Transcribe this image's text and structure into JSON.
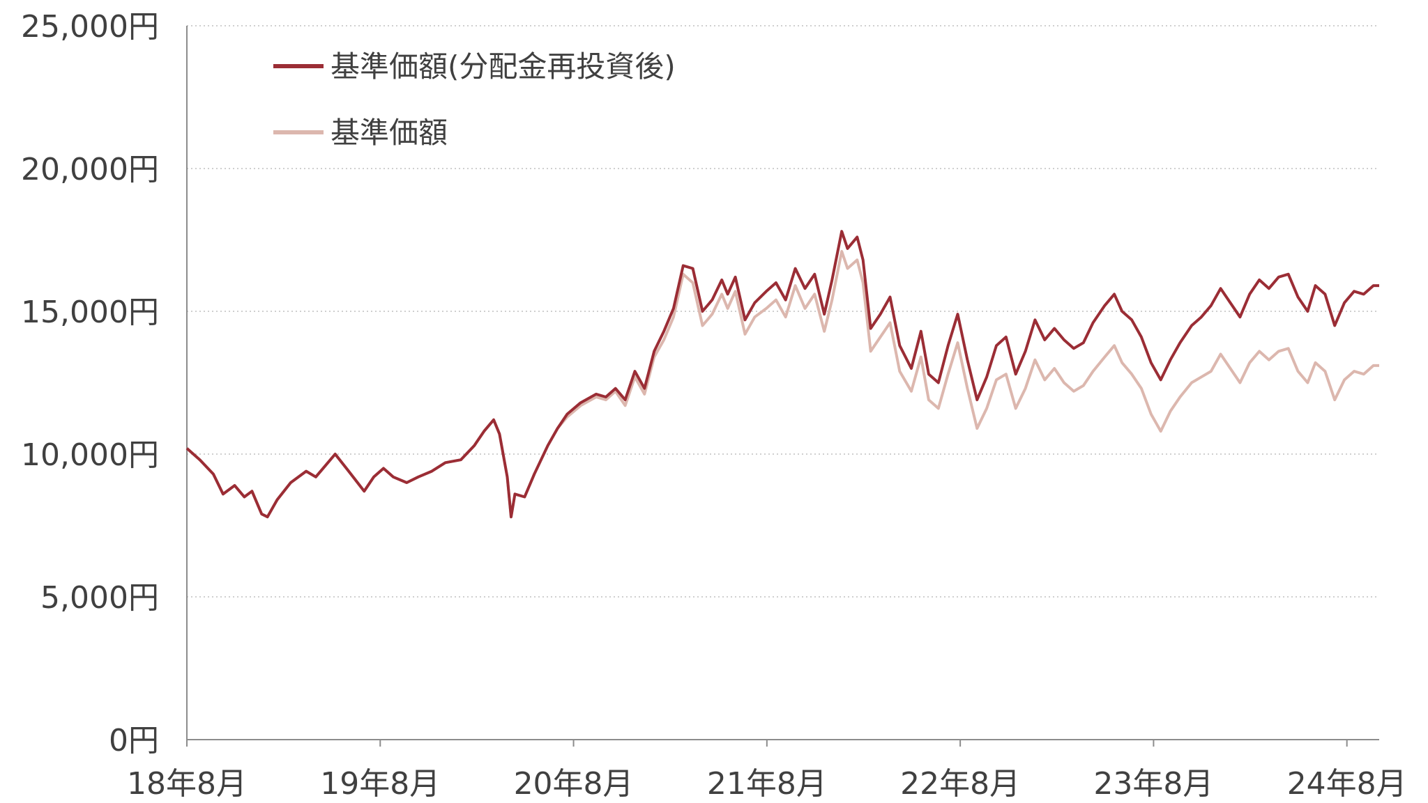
{
  "chart_data": {
    "type": "line",
    "title": "",
    "xlabel": "",
    "ylabel": "",
    "ylim": [
      0,
      25000
    ],
    "y_ticks": [
      0,
      5000,
      10000,
      15000,
      20000,
      25000
    ],
    "y_tick_labels": [
      "0円",
      "5,000円",
      "10,000円",
      "15,000円",
      "20,000円",
      "25,000円"
    ],
    "x_range": [
      2018.583,
      2024.75
    ],
    "x_ticks": [
      2018.583,
      2019.583,
      2020.583,
      2021.583,
      2022.583,
      2023.583,
      2024.583
    ],
    "x_tick_labels": [
      "18年8月",
      "19年8月",
      "20年8月",
      "21年8月",
      "22年8月",
      "23年8月",
      "24年8月"
    ],
    "grid": "horizontal-dotted",
    "legend_position": "top-left",
    "series": [
      {
        "name": "基準価額(分配金再投資後)",
        "color": "#9b2d35",
        "points": [
          [
            2018.583,
            10200
          ],
          [
            2018.65,
            9800
          ],
          [
            2018.72,
            9300
          ],
          [
            2018.77,
            8600
          ],
          [
            2018.83,
            8900
          ],
          [
            2018.88,
            8500
          ],
          [
            2018.92,
            8700
          ],
          [
            2018.97,
            7900
          ],
          [
            2019.0,
            7800
          ],
          [
            2019.05,
            8400
          ],
          [
            2019.12,
            9000
          ],
          [
            2019.2,
            9400
          ],
          [
            2019.25,
            9200
          ],
          [
            2019.3,
            9600
          ],
          [
            2019.35,
            10000
          ],
          [
            2019.42,
            9400
          ],
          [
            2019.5,
            8700
          ],
          [
            2019.55,
            9200
          ],
          [
            2019.6,
            9500
          ],
          [
            2019.65,
            9200
          ],
          [
            2019.72,
            9000
          ],
          [
            2019.78,
            9200
          ],
          [
            2019.85,
            9400
          ],
          [
            2019.92,
            9700
          ],
          [
            2020.0,
            9800
          ],
          [
            2020.07,
            10300
          ],
          [
            2020.12,
            10800
          ],
          [
            2020.17,
            11200
          ],
          [
            2020.2,
            10700
          ],
          [
            2020.24,
            9200
          ],
          [
            2020.26,
            7800
          ],
          [
            2020.28,
            8600
          ],
          [
            2020.33,
            8500
          ],
          [
            2020.38,
            9300
          ],
          [
            2020.45,
            10300
          ],
          [
            2020.5,
            10900
          ],
          [
            2020.55,
            11400
          ],
          [
            2020.62,
            11800
          ],
          [
            2020.7,
            12100
          ],
          [
            2020.75,
            12000
          ],
          [
            2020.8,
            12300
          ],
          [
            2020.85,
            11900
          ],
          [
            2020.9,
            12900
          ],
          [
            2020.95,
            12300
          ],
          [
            2021.0,
            13600
          ],
          [
            2021.05,
            14300
          ],
          [
            2021.1,
            15100
          ],
          [
            2021.15,
            16600
          ],
          [
            2021.2,
            16500
          ],
          [
            2021.25,
            15000
          ],
          [
            2021.3,
            15400
          ],
          [
            2021.35,
            16100
          ],
          [
            2021.38,
            15600
          ],
          [
            2021.42,
            16200
          ],
          [
            2021.47,
            14700
          ],
          [
            2021.52,
            15300
          ],
          [
            2021.58,
            15700
          ],
          [
            2021.63,
            16000
          ],
          [
            2021.68,
            15400
          ],
          [
            2021.73,
            16500
          ],
          [
            2021.78,
            15800
          ],
          [
            2021.83,
            16300
          ],
          [
            2021.88,
            14900
          ],
          [
            2021.92,
            16100
          ],
          [
            2021.97,
            17800
          ],
          [
            2022.0,
            17200
          ],
          [
            2022.05,
            17600
          ],
          [
            2022.08,
            16800
          ],
          [
            2022.12,
            14400
          ],
          [
            2022.17,
            14900
          ],
          [
            2022.22,
            15500
          ],
          [
            2022.27,
            13800
          ],
          [
            2022.33,
            13000
          ],
          [
            2022.38,
            14300
          ],
          [
            2022.42,
            12800
          ],
          [
            2022.47,
            12500
          ],
          [
            2022.52,
            13800
          ],
          [
            2022.57,
            14900
          ],
          [
            2022.62,
            13300
          ],
          [
            2022.67,
            11900
          ],
          [
            2022.72,
            12700
          ],
          [
            2022.77,
            13800
          ],
          [
            2022.82,
            14100
          ],
          [
            2022.87,
            12800
          ],
          [
            2022.92,
            13600
          ],
          [
            2022.97,
            14700
          ],
          [
            2023.02,
            14000
          ],
          [
            2023.07,
            14400
          ],
          [
            2023.12,
            14000
          ],
          [
            2023.17,
            13700
          ],
          [
            2023.22,
            13900
          ],
          [
            2023.27,
            14600
          ],
          [
            2023.33,
            15200
          ],
          [
            2023.38,
            15600
          ],
          [
            2023.42,
            15000
          ],
          [
            2023.47,
            14700
          ],
          [
            2023.52,
            14100
          ],
          [
            2023.57,
            13200
          ],
          [
            2023.62,
            12600
          ],
          [
            2023.67,
            13300
          ],
          [
            2023.72,
            13900
          ],
          [
            2023.78,
            14500
          ],
          [
            2023.83,
            14800
          ],
          [
            2023.88,
            15200
          ],
          [
            2023.93,
            15800
          ],
          [
            2023.98,
            15300
          ],
          [
            2024.03,
            14800
          ],
          [
            2024.08,
            15600
          ],
          [
            2024.13,
            16100
          ],
          [
            2024.18,
            15800
          ],
          [
            2024.23,
            16200
          ],
          [
            2024.28,
            16300
          ],
          [
            2024.33,
            15500
          ],
          [
            2024.38,
            15000
          ],
          [
            2024.42,
            15900
          ],
          [
            2024.47,
            15600
          ],
          [
            2024.52,
            14500
          ],
          [
            2024.57,
            15300
          ],
          [
            2024.62,
            15700
          ],
          [
            2024.67,
            15600
          ],
          [
            2024.72,
            15900
          ],
          [
            2024.75,
            15900
          ]
        ]
      },
      {
        "name": "基準価額",
        "color": "#dcb7ae",
        "points": [
          [
            2018.583,
            10200
          ],
          [
            2018.65,
            9800
          ],
          [
            2018.72,
            9300
          ],
          [
            2018.77,
            8600
          ],
          [
            2018.83,
            8900
          ],
          [
            2018.88,
            8500
          ],
          [
            2018.92,
            8700
          ],
          [
            2018.97,
            7900
          ],
          [
            2019.0,
            7800
          ],
          [
            2019.05,
            8400
          ],
          [
            2019.12,
            9000
          ],
          [
            2019.2,
            9400
          ],
          [
            2019.25,
            9200
          ],
          [
            2019.3,
            9600
          ],
          [
            2019.35,
            10000
          ],
          [
            2019.42,
            9400
          ],
          [
            2019.5,
            8700
          ],
          [
            2019.55,
            9200
          ],
          [
            2019.6,
            9500
          ],
          [
            2019.65,
            9200
          ],
          [
            2019.72,
            9000
          ],
          [
            2019.78,
            9200
          ],
          [
            2019.85,
            9400
          ],
          [
            2019.92,
            9700
          ],
          [
            2020.0,
            9800
          ],
          [
            2020.07,
            10300
          ],
          [
            2020.12,
            10800
          ],
          [
            2020.17,
            11200
          ],
          [
            2020.2,
            10700
          ],
          [
            2020.24,
            9200
          ],
          [
            2020.26,
            7800
          ],
          [
            2020.28,
            8600
          ],
          [
            2020.33,
            8500
          ],
          [
            2020.38,
            9300
          ],
          [
            2020.45,
            10300
          ],
          [
            2020.5,
            10900
          ],
          [
            2020.55,
            11300
          ],
          [
            2020.62,
            11700
          ],
          [
            2020.7,
            12000
          ],
          [
            2020.75,
            11900
          ],
          [
            2020.8,
            12200
          ],
          [
            2020.85,
            11700
          ],
          [
            2020.9,
            12700
          ],
          [
            2020.95,
            12100
          ],
          [
            2021.0,
            13400
          ],
          [
            2021.05,
            14000
          ],
          [
            2021.1,
            14800
          ],
          [
            2021.15,
            16300
          ],
          [
            2021.2,
            16000
          ],
          [
            2021.25,
            14500
          ],
          [
            2021.3,
            14900
          ],
          [
            2021.35,
            15600
          ],
          [
            2021.38,
            15100
          ],
          [
            2021.42,
            15700
          ],
          [
            2021.47,
            14200
          ],
          [
            2021.52,
            14800
          ],
          [
            2021.58,
            15100
          ],
          [
            2021.63,
            15400
          ],
          [
            2021.68,
            14800
          ],
          [
            2021.73,
            15900
          ],
          [
            2021.78,
            15100
          ],
          [
            2021.83,
            15600
          ],
          [
            2021.88,
            14300
          ],
          [
            2021.92,
            15400
          ],
          [
            2021.97,
            17100
          ],
          [
            2022.0,
            16500
          ],
          [
            2022.05,
            16800
          ],
          [
            2022.08,
            16000
          ],
          [
            2022.12,
            13600
          ],
          [
            2022.17,
            14100
          ],
          [
            2022.22,
            14600
          ],
          [
            2022.27,
            12900
          ],
          [
            2022.33,
            12200
          ],
          [
            2022.38,
            13400
          ],
          [
            2022.42,
            11900
          ],
          [
            2022.47,
            11600
          ],
          [
            2022.52,
            12800
          ],
          [
            2022.57,
            13900
          ],
          [
            2022.62,
            12300
          ],
          [
            2022.67,
            10900
          ],
          [
            2022.72,
            11600
          ],
          [
            2022.77,
            12600
          ],
          [
            2022.82,
            12800
          ],
          [
            2022.87,
            11600
          ],
          [
            2022.92,
            12300
          ],
          [
            2022.97,
            13300
          ],
          [
            2023.02,
            12600
          ],
          [
            2023.07,
            13000
          ],
          [
            2023.12,
            12500
          ],
          [
            2023.17,
            12200
          ],
          [
            2023.22,
            12400
          ],
          [
            2023.27,
            12900
          ],
          [
            2023.33,
            13400
          ],
          [
            2023.38,
            13800
          ],
          [
            2023.42,
            13200
          ],
          [
            2023.47,
            12800
          ],
          [
            2023.52,
            12300
          ],
          [
            2023.57,
            11400
          ],
          [
            2023.62,
            10800
          ],
          [
            2023.67,
            11500
          ],
          [
            2023.72,
            12000
          ],
          [
            2023.78,
            12500
          ],
          [
            2023.83,
            12700
          ],
          [
            2023.88,
            12900
          ],
          [
            2023.93,
            13500
          ],
          [
            2023.98,
            13000
          ],
          [
            2024.03,
            12500
          ],
          [
            2024.08,
            13200
          ],
          [
            2024.13,
            13600
          ],
          [
            2024.18,
            13300
          ],
          [
            2024.23,
            13600
          ],
          [
            2024.28,
            13700
          ],
          [
            2024.33,
            12900
          ],
          [
            2024.38,
            12500
          ],
          [
            2024.42,
            13200
          ],
          [
            2024.47,
            12900
          ],
          [
            2024.52,
            11900
          ],
          [
            2024.57,
            12600
          ],
          [
            2024.62,
            12900
          ],
          [
            2024.67,
            12800
          ],
          [
            2024.72,
            13100
          ],
          [
            2024.75,
            13100
          ]
        ]
      }
    ]
  }
}
